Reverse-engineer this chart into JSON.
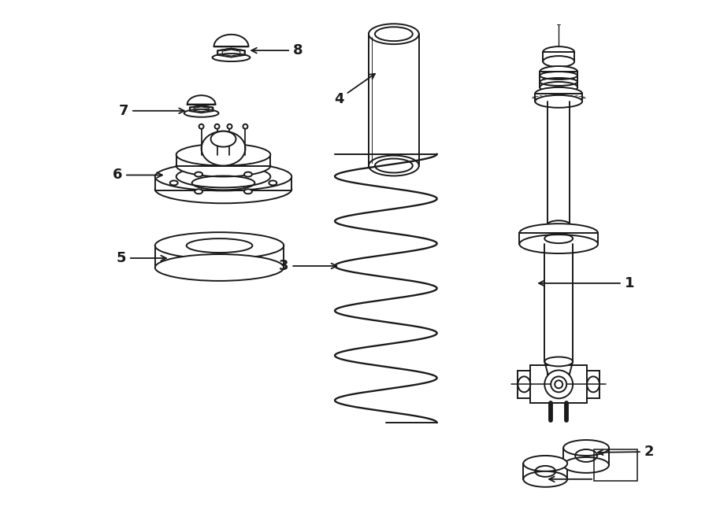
{
  "bg": "#ffffff",
  "lc": "#1a1a1a",
  "lw": 1.4,
  "fig_w": 9.0,
  "fig_h": 6.62,
  "dpi": 100
}
